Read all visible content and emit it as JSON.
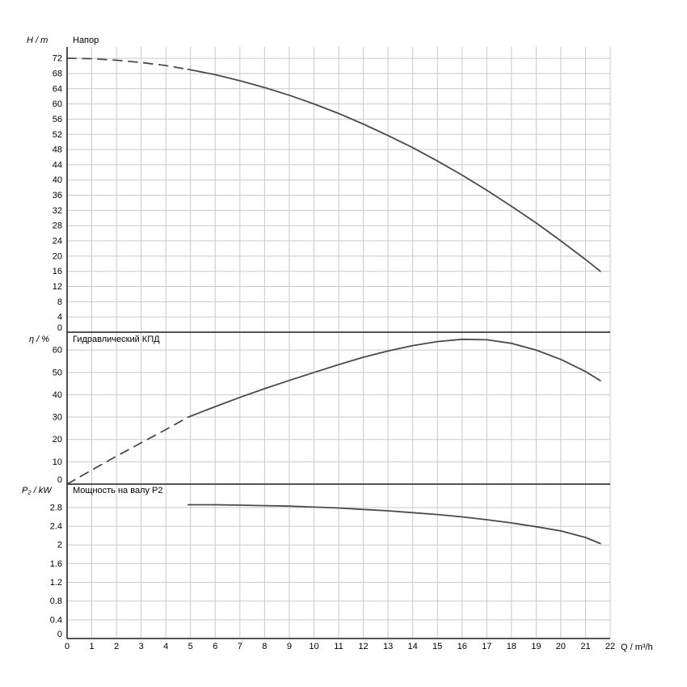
{
  "labels": {
    "top_y_unit": "H / m",
    "mid_y_unit": "η / %",
    "bottom_y_unit": "P₂ / kW",
    "x_unit": "Q / m³/h"
  },
  "style": {
    "background": "#ffffff",
    "curve_color": "#4a4a4a",
    "grid_color": "#c9c9c9",
    "axis_color": "#3c3c3c",
    "text_color": "#000000"
  },
  "chart_data": [
    {
      "type": "line",
      "title": "Напор",
      "ylabel": "H / m",
      "xlabel": "Q / m³/h",
      "xlim": [
        0,
        22
      ],
      "ylim": [
        0,
        75
      ],
      "grid": true,
      "legend_position": "none",
      "xticks": [
        0,
        1,
        2,
        3,
        4,
        5,
        6,
        7,
        8,
        9,
        10,
        11,
        12,
        13,
        14,
        15,
        16,
        17,
        18,
        19,
        20,
        21,
        22
      ],
      "yticks": [
        0,
        4,
        8,
        12,
        16,
        20,
        24,
        28,
        32,
        36,
        40,
        44,
        48,
        52,
        56,
        60,
        64,
        68,
        72
      ],
      "series": [
        {
          "name": "head-extrapolated",
          "style": "dashed",
          "points": [
            [
              0,
              72
            ],
            [
              1,
              71.9
            ],
            [
              2,
              71.5
            ],
            [
              3,
              70.9
            ],
            [
              4,
              70.1
            ],
            [
              4.9,
              69.1
            ]
          ]
        },
        {
          "name": "head",
          "style": "solid",
          "points": [
            [
              4.9,
              69.1
            ],
            [
              6,
              67.7
            ],
            [
              7,
              66.1
            ],
            [
              8,
              64.3
            ],
            [
              9,
              62.3
            ],
            [
              10,
              60
            ],
            [
              11,
              57.5
            ],
            [
              12,
              54.7
            ],
            [
              13,
              51.7
            ],
            [
              14,
              48.5
            ],
            [
              15,
              45
            ],
            [
              16,
              41.3
            ],
            [
              17,
              37.3
            ],
            [
              18,
              33.1
            ],
            [
              19,
              28.7
            ],
            [
              20,
              24
            ],
            [
              21,
              19.1
            ],
            [
              21.6,
              16
            ]
          ]
        }
      ]
    },
    {
      "type": "line",
      "title": "Гидравлический КПД",
      "ylabel": "η / %",
      "xlabel": "Q / m³/h",
      "xlim": [
        0,
        22
      ],
      "ylim": [
        0,
        68
      ],
      "grid": true,
      "legend_position": "none",
      "xticks": [
        0,
        1,
        2,
        3,
        4,
        5,
        6,
        7,
        8,
        9,
        10,
        11,
        12,
        13,
        14,
        15,
        16,
        17,
        18,
        19,
        20,
        21,
        22
      ],
      "yticks": [
        0,
        10,
        20,
        30,
        40,
        50,
        60
      ],
      "series": [
        {
          "name": "efficiency-extrapolated",
          "style": "dashed",
          "points": [
            [
              0,
              0
            ],
            [
              1,
              6.3
            ],
            [
              2,
              12.5
            ],
            [
              3,
              18.5
            ],
            [
              4,
              24.4
            ],
            [
              4.9,
              30
            ]
          ]
        },
        {
          "name": "efficiency",
          "style": "solid",
          "points": [
            [
              4.9,
              30
            ],
            [
              6,
              34.7
            ],
            [
              7,
              38.8
            ],
            [
              8,
              42.7
            ],
            [
              9,
              46.4
            ],
            [
              10,
              50
            ],
            [
              11,
              53.5
            ],
            [
              12,
              56.8
            ],
            [
              13,
              59.6
            ],
            [
              14,
              62
            ],
            [
              15,
              63.8
            ],
            [
              16,
              64.8
            ],
            [
              17,
              64.6
            ],
            [
              18,
              63
            ],
            [
              19,
              60
            ],
            [
              20,
              55.8
            ],
            [
              21,
              50.4
            ],
            [
              21.6,
              46.3
            ]
          ]
        }
      ]
    },
    {
      "type": "line",
      "title": "Мощность на валу P2",
      "ylabel": "P₂ / kW",
      "xlabel": "Q / m³/h",
      "xlim": [
        0,
        22
      ],
      "ylim": [
        0,
        3.3
      ],
      "grid": true,
      "legend_position": "none",
      "xticks": [
        0,
        1,
        2,
        3,
        4,
        5,
        6,
        7,
        8,
        9,
        10,
        11,
        12,
        13,
        14,
        15,
        16,
        17,
        18,
        19,
        20,
        21,
        22
      ],
      "yticks": [
        0,
        0.4,
        0.8,
        1.2,
        1.6,
        2,
        2.4,
        2.8
      ],
      "series": [
        {
          "name": "shaft-power",
          "style": "solid",
          "points": [
            [
              4.9,
              2.86
            ],
            [
              6,
              2.86
            ],
            [
              7,
              2.85
            ],
            [
              8,
              2.84
            ],
            [
              9,
              2.83
            ],
            [
              10,
              2.81
            ],
            [
              11,
              2.79
            ],
            [
              12,
              2.76
            ],
            [
              13,
              2.73
            ],
            [
              14,
              2.69
            ],
            [
              15,
              2.65
            ],
            [
              16,
              2.6
            ],
            [
              17,
              2.54
            ],
            [
              18,
              2.47
            ],
            [
              19,
              2.39
            ],
            [
              20,
              2.3
            ],
            [
              21,
              2.16
            ],
            [
              21.6,
              2.03
            ]
          ]
        }
      ]
    }
  ]
}
